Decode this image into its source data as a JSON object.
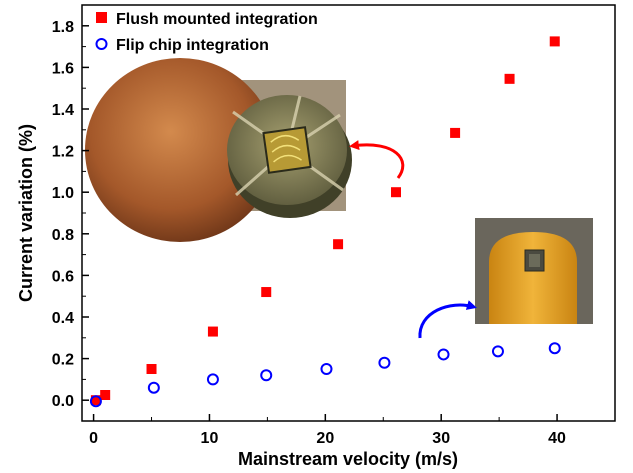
{
  "chart_data": {
    "type": "scatter",
    "xlabel": "Mainstream velocity (m/s)",
    "ylabel": "Current variation (%)",
    "xlim": [
      -1,
      45
    ],
    "ylim": [
      -0.1,
      1.9
    ],
    "xticks": [
      "0",
      "10",
      "20",
      "30",
      "40"
    ],
    "yticks": [
      "0.0",
      "0.2",
      "0.4",
      "0.6",
      "0.8",
      "1.0",
      "1.2",
      "1.4",
      "1.6",
      "1.8"
    ],
    "legend_position": "top-left",
    "grid": false,
    "series": [
      {
        "name": "Flush mounted integration",
        "marker": "filled-square",
        "color": "#ff0000",
        "x": [
          0.2,
          1.0,
          5.0,
          10.3,
          14.9,
          21.1,
          26.1,
          31.2,
          35.9,
          39.8
        ],
        "y": [
          0.0,
          0.025,
          0.15,
          0.33,
          0.52,
          0.75,
          1.0,
          1.285,
          1.545,
          1.725
        ]
      },
      {
        "name": "Flip chip integration",
        "marker": "open-circle",
        "color": "#0000ff",
        "x": [
          0.2,
          5.2,
          10.3,
          14.9,
          20.1,
          25.1,
          30.2,
          34.9,
          39.8
        ],
        "y": [
          -0.005,
          0.06,
          0.1,
          0.12,
          0.15,
          0.18,
          0.22,
          0.235,
          0.25
        ]
      }
    ]
  }
}
